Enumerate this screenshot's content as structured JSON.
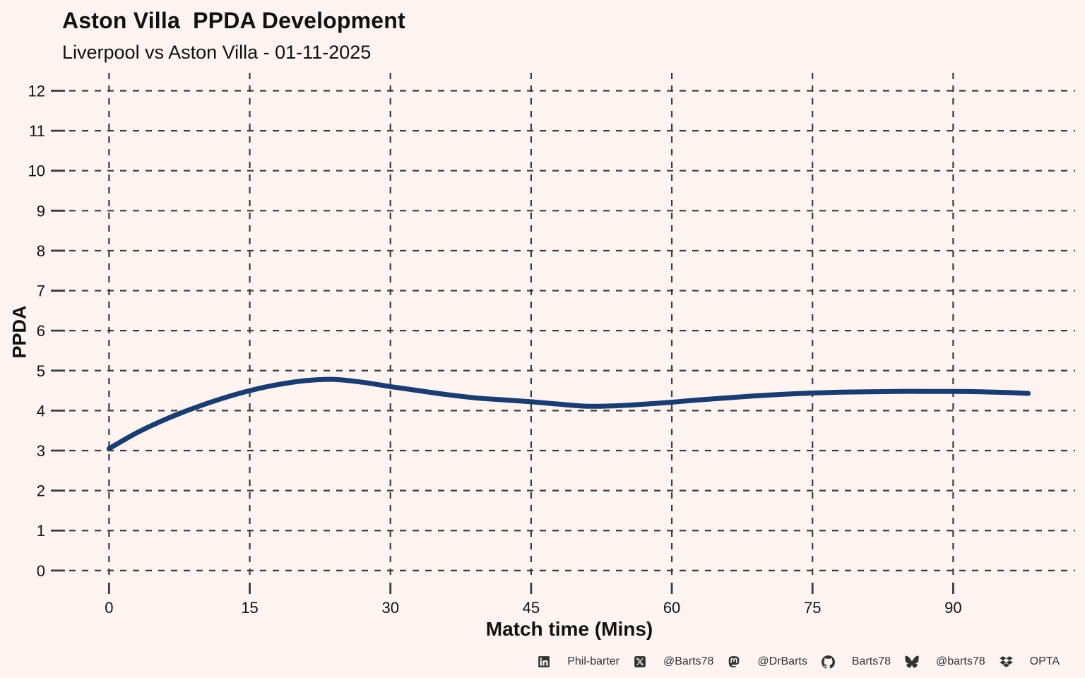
{
  "chart_data": {
    "type": "line",
    "title": "Aston Villa  PPDA Development",
    "subtitle": "Liverpool vs Aston Villa - 01-11-2025",
    "xlabel": "Match time (Mins)",
    "ylabel": "PPDA",
    "x_ticks": [
      0,
      15,
      30,
      45,
      60,
      75,
      90
    ],
    "y_ticks": [
      0,
      1,
      2,
      3,
      4,
      5,
      6,
      7,
      8,
      9,
      10,
      11,
      12
    ],
    "xlim": [
      -5,
      103
    ],
    "ylim": [
      -0.25,
      12.45
    ],
    "grid": "dashed-both-axes",
    "legend": "none",
    "line_color": "#1b3c70",
    "series": [
      {
        "name": "PPDA",
        "x": [
          0,
          3,
          6,
          9,
          12,
          15,
          18,
          21,
          24,
          27,
          30,
          33,
          36,
          39,
          42,
          45,
          48,
          51,
          54,
          57,
          60,
          63,
          66,
          69,
          72,
          75,
          78,
          81,
          84,
          87,
          90,
          93,
          96,
          98
        ],
        "y": [
          3.05,
          3.45,
          3.78,
          4.06,
          4.3,
          4.5,
          4.65,
          4.75,
          4.78,
          4.71,
          4.6,
          4.5,
          4.4,
          4.32,
          4.27,
          4.22,
          4.16,
          4.11,
          4.12,
          4.16,
          4.21,
          4.27,
          4.32,
          4.37,
          4.41,
          4.44,
          4.46,
          4.47,
          4.48,
          4.48,
          4.48,
          4.47,
          4.45,
          4.43
        ]
      }
    ]
  },
  "footer": {
    "items": [
      {
        "icon": "linkedin-icon",
        "label": "Phil-barter"
      },
      {
        "icon": "x-twitter-icon",
        "label": "@Barts78"
      },
      {
        "icon": "mastodon-icon",
        "label": "@DrBarts"
      },
      {
        "icon": "github-icon",
        "label": "Barts78"
      },
      {
        "icon": "bluesky-icon",
        "label": "@barts78"
      },
      {
        "icon": "dropbox-icon",
        "label": "OPTA"
      }
    ]
  },
  "colors": {
    "background": "#fdf4f1",
    "grid": "#3b3b3b",
    "line": "#1b3c70",
    "text": "#111111",
    "footer_text": "#333333"
  }
}
